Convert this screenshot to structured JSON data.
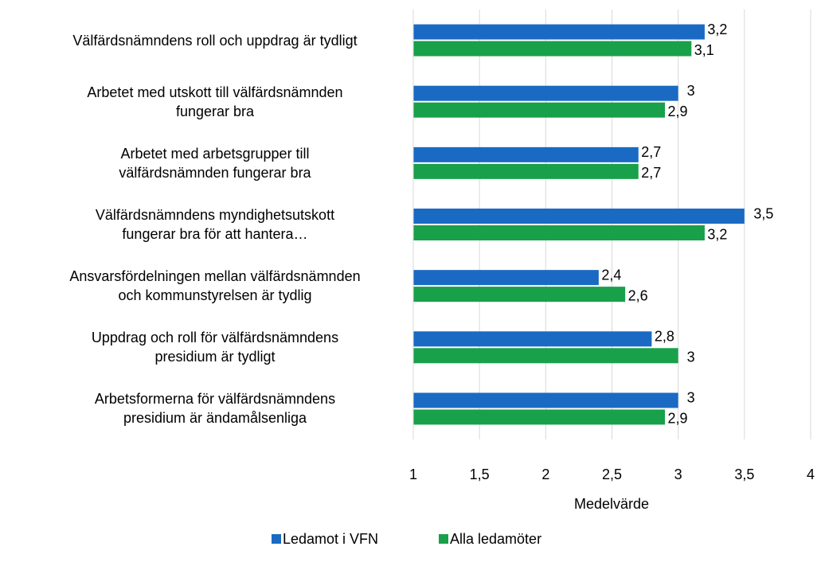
{
  "chart_data": {
    "type": "hbar",
    "categories": [
      "Välfärdsnämndens roll och uppdrag är tydligt",
      "Arbetet med utskott till välfärdsnämnden\nfungerar bra",
      "Arbetet med arbetsgrupper till\nvälfärdsnämnden fungerar bra",
      "Välfärdsnämndens myndighetsutskott\nfungerar bra för att hantera…",
      "Ansvarsfördelningen mellan välfärdsnämnden\noch kommunstyrelsen är tydlig",
      "Uppdrag och roll för välfärdsnämndens\npresidium är tydligt",
      "Arbetsformerna för välfärdsnämndens\npresidium är ändamålsenliga"
    ],
    "series": [
      {
        "name": "Ledamot i VFN",
        "color": "#1a6ac3",
        "values": [
          3.2,
          3,
          2.7,
          3.5,
          2.4,
          2.8,
          3
        ],
        "value_labels": [
          "3,2",
          "3",
          "2,7",
          "3,5",
          "2,4",
          "2,8",
          "3"
        ]
      },
      {
        "name": "Alla ledamöter",
        "color": "#19a04a",
        "values": [
          3.1,
          2.9,
          2.7,
          3.2,
          2.6,
          3,
          2.9
        ],
        "value_labels": [
          "3,1",
          "2,9",
          "2,7",
          "3,2",
          "2,6",
          "3",
          "2,9"
        ]
      }
    ],
    "xlabel": "Medelvärde",
    "xlim": [
      1,
      4
    ],
    "xticks": [
      1,
      {
        "value": 1.5,
        "label": "1,5"
      },
      2,
      {
        "value": 2.5,
        "label": "2,5"
      },
      3,
      {
        "value": 3.5,
        "label": "3,5"
      },
      4
    ],
    "grid": true
  }
}
